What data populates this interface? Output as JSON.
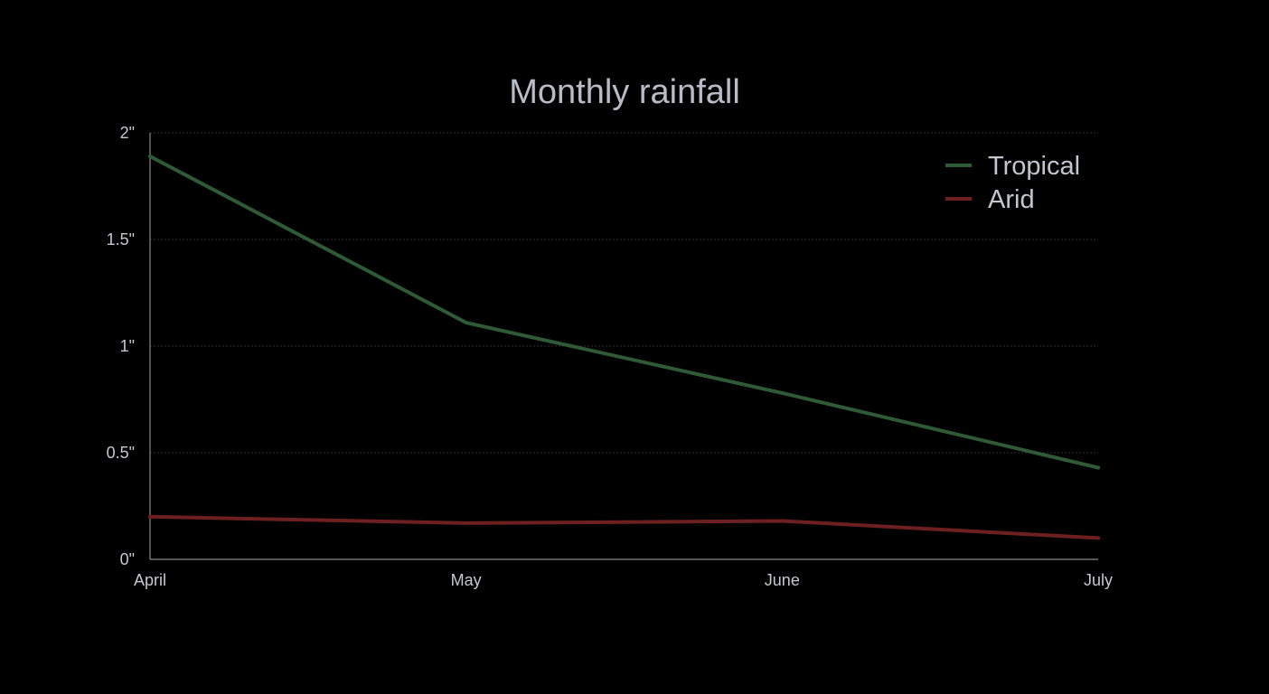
{
  "chart_data": {
    "type": "line",
    "title": "Monthly rainfall",
    "xlabel": "",
    "ylabel": "",
    "categories": [
      "April",
      "May",
      "June",
      "July"
    ],
    "ylim": [
      0,
      2
    ],
    "yticks": [
      0,
      0.5,
      1,
      1.5,
      2
    ],
    "ytick_labels": [
      "0\"",
      "0.5\"",
      "1\"",
      "1.5\"",
      "2\""
    ],
    "grid": true,
    "legend_position": "top-right",
    "series": [
      {
        "name": "Tropical",
        "color": "#2f5a36",
        "values": [
          1.89,
          1.11,
          0.78,
          0.43
        ]
      },
      {
        "name": "Arid",
        "color": "#6e2020",
        "values": [
          0.2,
          0.17,
          0.18,
          0.1
        ]
      }
    ]
  }
}
